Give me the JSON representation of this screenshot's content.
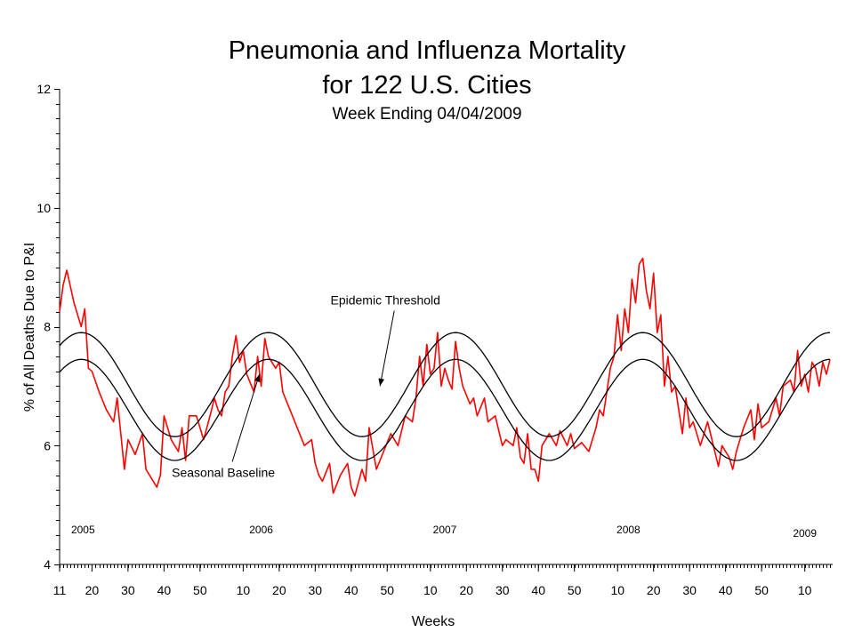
{
  "chart_data": {
    "type": "line",
    "title": [
      "Pneumonia and Influenza Mortality",
      "for 122 U.S. Cities"
    ],
    "subtitle": "Week Ending 04/04/2009",
    "xlabel": "Weeks",
    "ylabel": "% of All Deaths Due to P&I",
    "ylim": [
      4,
      12
    ],
    "y_ticks": [
      "4",
      "6",
      "8",
      "10",
      "12"
    ],
    "x_ticks": [
      {
        "week_index": 0,
        "label": "11"
      },
      {
        "week_index": 9,
        "label": "20"
      },
      {
        "week_index": 19,
        "label": "30"
      },
      {
        "week_index": 29,
        "label": "40"
      },
      {
        "week_index": 39,
        "label": "50"
      },
      {
        "week_index": 51,
        "label": "10"
      },
      {
        "week_index": 61,
        "label": "20"
      },
      {
        "week_index": 71,
        "label": "30"
      },
      {
        "week_index": 81,
        "label": "40"
      },
      {
        "week_index": 91,
        "label": "50"
      },
      {
        "week_index": 103,
        "label": "10"
      },
      {
        "week_index": 113,
        "label": "20"
      },
      {
        "week_index": 123,
        "label": "30"
      },
      {
        "week_index": 133,
        "label": "40"
      },
      {
        "week_index": 143,
        "label": "50"
      },
      {
        "week_index": 155,
        "label": "10"
      },
      {
        "week_index": 165,
        "label": "20"
      },
      {
        "week_index": 175,
        "label": "30"
      },
      {
        "week_index": 185,
        "label": "40"
      },
      {
        "week_index": 195,
        "label": "50"
      },
      {
        "week_index": 207,
        "label": "10"
      }
    ],
    "x_range": [
      0,
      214
    ],
    "years": [
      {
        "label": "2005",
        "week_index": 6.5
      },
      {
        "label": "2006",
        "week_index": 56
      },
      {
        "label": "2007",
        "week_index": 107
      },
      {
        "label": "2008",
        "week_index": 158
      },
      {
        "label": "2009",
        "week_index": 207
      }
    ],
    "series": [
      {
        "role": "observed",
        "color": "#ff0000",
        "anchors": [
          [
            0,
            8.25
          ],
          [
            1,
            8.7
          ],
          [
            2,
            8.95
          ],
          [
            4,
            8.4
          ],
          [
            6,
            8.0
          ],
          [
            7,
            8.3
          ],
          [
            8,
            7.3
          ],
          [
            9,
            7.25
          ],
          [
            11,
            6.9
          ],
          [
            13,
            6.6
          ],
          [
            15,
            6.4
          ],
          [
            16,
            6.8
          ],
          [
            17,
            6.2
          ],
          [
            18,
            5.6
          ],
          [
            19,
            6.1
          ],
          [
            21,
            5.85
          ],
          [
            23,
            6.2
          ],
          [
            24,
            5.6
          ],
          [
            25,
            5.5
          ],
          [
            27,
            5.3
          ],
          [
            28,
            5.5
          ],
          [
            29,
            6.5
          ],
          [
            31,
            6.1
          ],
          [
            33,
            5.9
          ],
          [
            34,
            6.3
          ],
          [
            35,
            5.75
          ],
          [
            36,
            6.5
          ],
          [
            38,
            6.5
          ],
          [
            40,
            6.1
          ],
          [
            42,
            6.55
          ],
          [
            43,
            6.8
          ],
          [
            44,
            6.6
          ],
          [
            45,
            6.5
          ],
          [
            46,
            6.9
          ],
          [
            47,
            7.0
          ],
          [
            48,
            7.5
          ],
          [
            49,
            7.85
          ],
          [
            50,
            7.4
          ],
          [
            51,
            7.6
          ],
          [
            52,
            7.2
          ],
          [
            54,
            6.9
          ],
          [
            55,
            7.5
          ],
          [
            56,
            7.0
          ],
          [
            57,
            7.8
          ],
          [
            58,
            7.5
          ],
          [
            60,
            7.3
          ],
          [
            61,
            7.4
          ],
          [
            62,
            6.9
          ],
          [
            64,
            6.6
          ],
          [
            66,
            6.3
          ],
          [
            68,
            6.0
          ],
          [
            70,
            6.1
          ],
          [
            71,
            5.7
          ],
          [
            72,
            5.5
          ],
          [
            73,
            5.4
          ],
          [
            75,
            5.7
          ],
          [
            76,
            5.2
          ],
          [
            78,
            5.5
          ],
          [
            80,
            5.7
          ],
          [
            81,
            5.3
          ],
          [
            82,
            5.15
          ],
          [
            84,
            5.6
          ],
          [
            85,
            5.4
          ],
          [
            86,
            6.3
          ],
          [
            88,
            5.6
          ],
          [
            90,
            5.9
          ],
          [
            92,
            6.2
          ],
          [
            94,
            6.0
          ],
          [
            96,
            6.5
          ],
          [
            98,
            6.4
          ],
          [
            99,
            6.8
          ],
          [
            100,
            7.5
          ],
          [
            101,
            7.0
          ],
          [
            102,
            7.7
          ],
          [
            103,
            7.2
          ],
          [
            104,
            7.3
          ],
          [
            105,
            7.9
          ],
          [
            106,
            7.0
          ],
          [
            107,
            7.3
          ],
          [
            108,
            7.1
          ],
          [
            109,
            6.95
          ],
          [
            110,
            7.75
          ],
          [
            111,
            7.3
          ],
          [
            112,
            7.0
          ],
          [
            114,
            6.7
          ],
          [
            115,
            6.8
          ],
          [
            116,
            6.5
          ],
          [
            118,
            6.8
          ],
          [
            119,
            6.4
          ],
          [
            121,
            6.5
          ],
          [
            123,
            6.0
          ],
          [
            124,
            6.1
          ],
          [
            126,
            6.0
          ],
          [
            127,
            6.3
          ],
          [
            128,
            5.8
          ],
          [
            129,
            5.7
          ],
          [
            130,
            6.2
          ],
          [
            131,
            5.6
          ],
          [
            132,
            5.6
          ],
          [
            133,
            5.4
          ],
          [
            134,
            6.0
          ],
          [
            136,
            6.2
          ],
          [
            137,
            6.1
          ],
          [
            138,
            6.0
          ],
          [
            139,
            6.25
          ],
          [
            141,
            6.0
          ],
          [
            142,
            6.2
          ],
          [
            143,
            5.95
          ],
          [
            145,
            6.05
          ],
          [
            147,
            5.9
          ],
          [
            149,
            6.3
          ],
          [
            150,
            6.6
          ],
          [
            151,
            6.5
          ],
          [
            152,
            6.9
          ],
          [
            153,
            7.3
          ],
          [
            154,
            7.5
          ],
          [
            155,
            8.2
          ],
          [
            156,
            7.6
          ],
          [
            157,
            8.3
          ],
          [
            158,
            7.9
          ],
          [
            159,
            8.8
          ],
          [
            160,
            8.4
          ],
          [
            161,
            9.05
          ],
          [
            162,
            9.15
          ],
          [
            163,
            8.6
          ],
          [
            164,
            8.3
          ],
          [
            165,
            8.9
          ],
          [
            166,
            7.9
          ],
          [
            167,
            8.2
          ],
          [
            168,
            7.0
          ],
          [
            169,
            7.5
          ],
          [
            170,
            6.9
          ],
          [
            171,
            7.0
          ],
          [
            172,
            6.6
          ],
          [
            173,
            6.2
          ],
          [
            174,
            6.8
          ],
          [
            175,
            6.3
          ],
          [
            176,
            6.4
          ],
          [
            178,
            6.0
          ],
          [
            180,
            6.4
          ],
          [
            181,
            6.15
          ],
          [
            182,
            5.9
          ],
          [
            183,
            5.65
          ],
          [
            184,
            6.0
          ],
          [
            186,
            5.8
          ],
          [
            187,
            5.6
          ],
          [
            188,
            5.9
          ],
          [
            190,
            6.3
          ],
          [
            192,
            6.6
          ],
          [
            193,
            6.1
          ],
          [
            194,
            6.7
          ],
          [
            195,
            6.3
          ],
          [
            197,
            6.4
          ],
          [
            199,
            6.8
          ],
          [
            200,
            6.5
          ],
          [
            201,
            7.0
          ],
          [
            203,
            7.1
          ],
          [
            204,
            6.9
          ],
          [
            205,
            7.6
          ],
          [
            206,
            7.0
          ],
          [
            207,
            7.2
          ],
          [
            208,
            6.9
          ],
          [
            209,
            7.4
          ],
          [
            210,
            7.3
          ],
          [
            211,
            7.0
          ],
          [
            212,
            7.4
          ],
          [
            213,
            7.2
          ],
          [
            214,
            7.45
          ]
        ]
      },
      {
        "role": "epidemic_threshold",
        "color": "#000000",
        "min_week_index": 32,
        "period_weeks": 52,
        "low": 6.15,
        "high": 7.9
      },
      {
        "role": "seasonal_baseline",
        "color": "#000000",
        "min_week_index": 32,
        "period_weeks": 52,
        "low": 5.75,
        "high": 7.45
      }
    ],
    "annotations": [
      {
        "label": "Epidemic Threshold",
        "week_index": 90.5,
        "value": 8.45,
        "arrow_to": [
          89,
          7.0
        ]
      },
      {
        "label": "Seasonal Baseline",
        "week_index": 45.5,
        "value": 5.55,
        "arrow_to": [
          55.5,
          7.2
        ]
      }
    ]
  }
}
